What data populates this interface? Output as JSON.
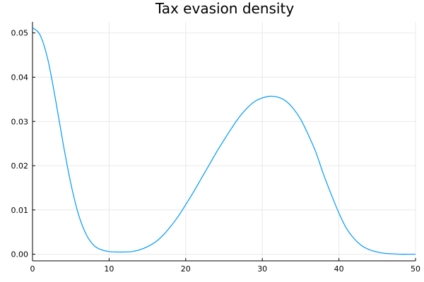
{
  "chart_data": {
    "type": "line",
    "title": "Tax evasion density",
    "xlabel": "",
    "ylabel": "",
    "xlim": [
      0,
      50
    ],
    "ylim": [
      -0.0015,
      0.0525
    ],
    "xticks": [
      0,
      10,
      20,
      30,
      40,
      50
    ],
    "xtick_labels": [
      "0",
      "10",
      "20",
      "30",
      "40",
      "50"
    ],
    "yticks": [
      0.0,
      0.01,
      0.02,
      0.03,
      0.04,
      0.05
    ],
    "ytick_labels": [
      "0.00",
      "0.01",
      "0.02",
      "0.03",
      "0.04",
      "0.05"
    ],
    "grid": true,
    "legend": "none",
    "series": [
      {
        "color": "#009af9",
        "x": [
          0,
          1,
          2,
          3,
          4,
          5,
          6,
          7,
          8,
          9,
          10,
          11,
          12,
          13,
          14,
          15,
          16,
          17,
          18,
          19,
          20,
          21,
          22,
          23,
          24,
          25,
          26,
          27,
          28,
          29,
          30,
          31,
          32,
          33,
          34,
          35,
          36,
          37,
          38,
          39,
          40,
          41,
          42,
          43,
          44,
          45,
          46,
          47,
          48,
          49,
          50
        ],
        "y": [
          0.0512,
          0.0495,
          0.044,
          0.035,
          0.025,
          0.016,
          0.009,
          0.0045,
          0.002,
          0.001,
          0.0006,
          0.0005,
          0.0005,
          0.0006,
          0.001,
          0.0017,
          0.0027,
          0.0042,
          0.0062,
          0.0085,
          0.0112,
          0.014,
          0.017,
          0.02,
          0.023,
          0.0258,
          0.0285,
          0.031,
          0.033,
          0.0345,
          0.0353,
          0.0357,
          0.0355,
          0.0347,
          0.033,
          0.0305,
          0.027,
          0.023,
          0.018,
          0.0135,
          0.0093,
          0.0058,
          0.0035,
          0.0019,
          0.001,
          0.0005,
          0.0002,
          0.0001,
          0.0,
          0.0,
          0.0
        ]
      }
    ]
  }
}
